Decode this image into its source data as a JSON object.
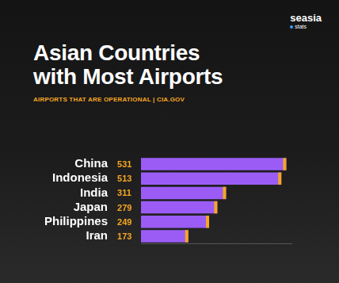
{
  "chart_data": {
    "type": "bar",
    "orientation": "horizontal",
    "title": "Asian Countries\nwith Most Airports",
    "subtitle": "AIRPORTS THAT ARE OPERATIONAL | CIA.GOV",
    "annotations": [
      "seasia",
      "stats"
    ],
    "categories": [
      "China",
      "Indonesia",
      "India",
      "Japan",
      "Philippines",
      "Iran"
    ],
    "values": [
      531,
      513,
      311,
      279,
      249,
      173
    ],
    "color": "#9b5cf6",
    "xlim": [
      0,
      550
    ],
    "grid": false,
    "data_labels": true,
    "tick_labels": "y"
  }
}
